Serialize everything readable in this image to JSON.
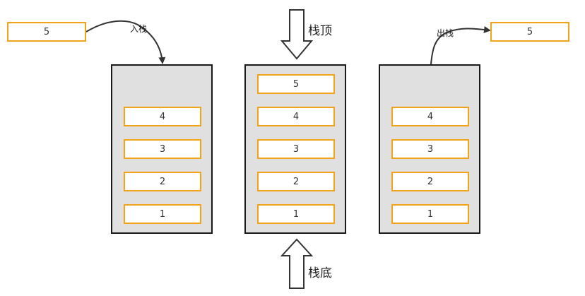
{
  "labels": {
    "push": "入栈",
    "pop": "出栈",
    "top": "栈顶",
    "bottom": "栈底"
  },
  "incoming_value": "5",
  "outgoing_value": "5",
  "stacks": [
    {
      "items": [
        "4",
        "3",
        "2",
        "1"
      ]
    },
    {
      "items": [
        "5",
        "4",
        "3",
        "2",
        "1"
      ]
    },
    {
      "items": [
        "4",
        "3",
        "2",
        "1"
      ]
    }
  ],
  "colors": {
    "item_border": "#f5a21b",
    "stack_fill": "#e0e0e0",
    "stack_border": "#1a1a1a"
  }
}
